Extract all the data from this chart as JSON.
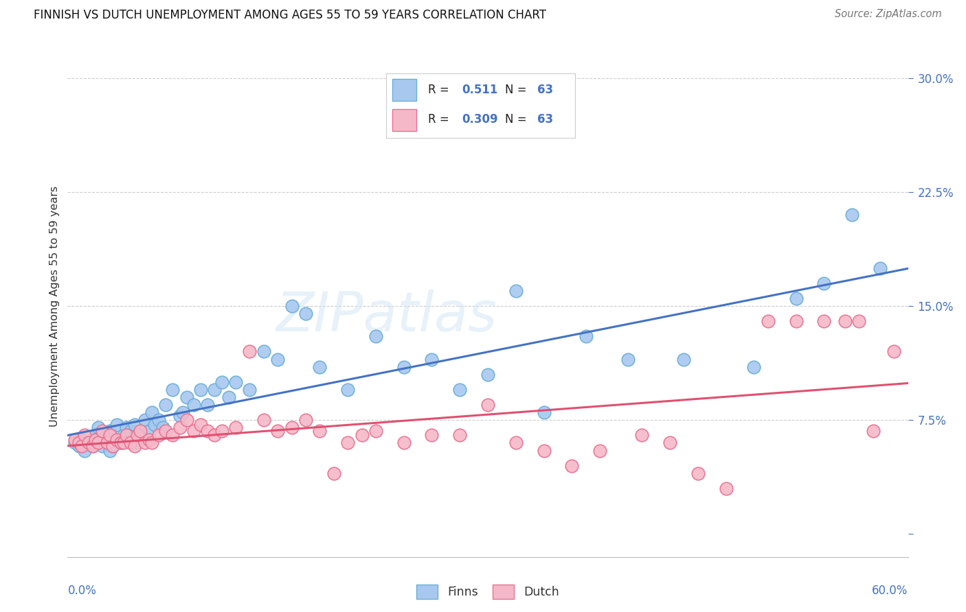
{
  "title": "FINNISH VS DUTCH UNEMPLOYMENT AMONG AGES 55 TO 59 YEARS CORRELATION CHART",
  "source": "Source: ZipAtlas.com",
  "ylabel": "Unemployment Among Ages 55 to 59 years",
  "xlim": [
    0.0,
    0.6
  ],
  "ylim": [
    -0.015,
    0.315
  ],
  "yticks": [
    0.0,
    0.075,
    0.15,
    0.225,
    0.3
  ],
  "ytick_labels": [
    "",
    "7.5%",
    "15.0%",
    "22.5%",
    "30.0%"
  ],
  "finns_color": "#a8c8f0",
  "dutch_color": "#f5b8c8",
  "finns_edge_color": "#6baed6",
  "dutch_edge_color": "#e87090",
  "finns_line_color": "#4472c4",
  "dutch_line_color": "#e05070",
  "tick_color": "#4472c4",
  "watermark_text": "ZIPatlas",
  "legend_r_finns": "0.511",
  "legend_n_finns": "63",
  "legend_r_dutch": "0.309",
  "legend_n_dutch": "63",
  "finns_x": [
    0.005,
    0.008,
    0.01,
    0.012,
    0.015,
    0.018,
    0.02,
    0.02,
    0.022,
    0.025,
    0.025,
    0.028,
    0.03,
    0.03,
    0.032,
    0.035,
    0.038,
    0.04,
    0.042,
    0.045,
    0.048,
    0.05,
    0.052,
    0.055,
    0.058,
    0.06,
    0.062,
    0.065,
    0.068,
    0.07,
    0.075,
    0.08,
    0.082,
    0.085,
    0.09,
    0.095,
    0.1,
    0.105,
    0.11,
    0.115,
    0.12,
    0.13,
    0.14,
    0.15,
    0.16,
    0.17,
    0.18,
    0.2,
    0.22,
    0.24,
    0.26,
    0.28,
    0.3,
    0.32,
    0.34,
    0.37,
    0.4,
    0.44,
    0.49,
    0.52,
    0.54,
    0.56,
    0.58
  ],
  "finns_y": [
    0.06,
    0.058,
    0.062,
    0.055,
    0.06,
    0.058,
    0.06,
    0.065,
    0.07,
    0.058,
    0.065,
    0.062,
    0.055,
    0.068,
    0.058,
    0.072,
    0.06,
    0.065,
    0.07,
    0.068,
    0.072,
    0.06,
    0.065,
    0.075,
    0.068,
    0.08,
    0.072,
    0.075,
    0.07,
    0.085,
    0.095,
    0.078,
    0.08,
    0.09,
    0.085,
    0.095,
    0.085,
    0.095,
    0.1,
    0.09,
    0.1,
    0.095,
    0.12,
    0.115,
    0.15,
    0.145,
    0.11,
    0.095,
    0.13,
    0.11,
    0.115,
    0.095,
    0.105,
    0.16,
    0.08,
    0.13,
    0.115,
    0.115,
    0.11,
    0.155,
    0.165,
    0.21,
    0.175
  ],
  "dutch_x": [
    0.005,
    0.008,
    0.01,
    0.012,
    0.015,
    0.018,
    0.02,
    0.022,
    0.025,
    0.028,
    0.03,
    0.032,
    0.035,
    0.038,
    0.04,
    0.042,
    0.045,
    0.048,
    0.05,
    0.052,
    0.055,
    0.058,
    0.06,
    0.065,
    0.07,
    0.075,
    0.08,
    0.085,
    0.09,
    0.095,
    0.1,
    0.105,
    0.11,
    0.12,
    0.13,
    0.14,
    0.15,
    0.16,
    0.17,
    0.18,
    0.19,
    0.2,
    0.21,
    0.22,
    0.24,
    0.26,
    0.28,
    0.3,
    0.32,
    0.34,
    0.36,
    0.38,
    0.41,
    0.43,
    0.45,
    0.47,
    0.5,
    0.52,
    0.54,
    0.555,
    0.565,
    0.575,
    0.59
  ],
  "dutch_y": [
    0.062,
    0.06,
    0.058,
    0.065,
    0.06,
    0.058,
    0.062,
    0.06,
    0.068,
    0.06,
    0.065,
    0.058,
    0.062,
    0.06,
    0.06,
    0.065,
    0.06,
    0.058,
    0.065,
    0.068,
    0.06,
    0.062,
    0.06,
    0.065,
    0.068,
    0.065,
    0.07,
    0.075,
    0.068,
    0.072,
    0.068,
    0.065,
    0.068,
    0.07,
    0.12,
    0.075,
    0.068,
    0.07,
    0.075,
    0.068,
    0.04,
    0.06,
    0.065,
    0.068,
    0.06,
    0.065,
    0.065,
    0.085,
    0.06,
    0.055,
    0.045,
    0.055,
    0.065,
    0.06,
    0.04,
    0.03,
    0.14,
    0.14,
    0.14,
    0.14,
    0.14,
    0.068,
    0.12
  ]
}
